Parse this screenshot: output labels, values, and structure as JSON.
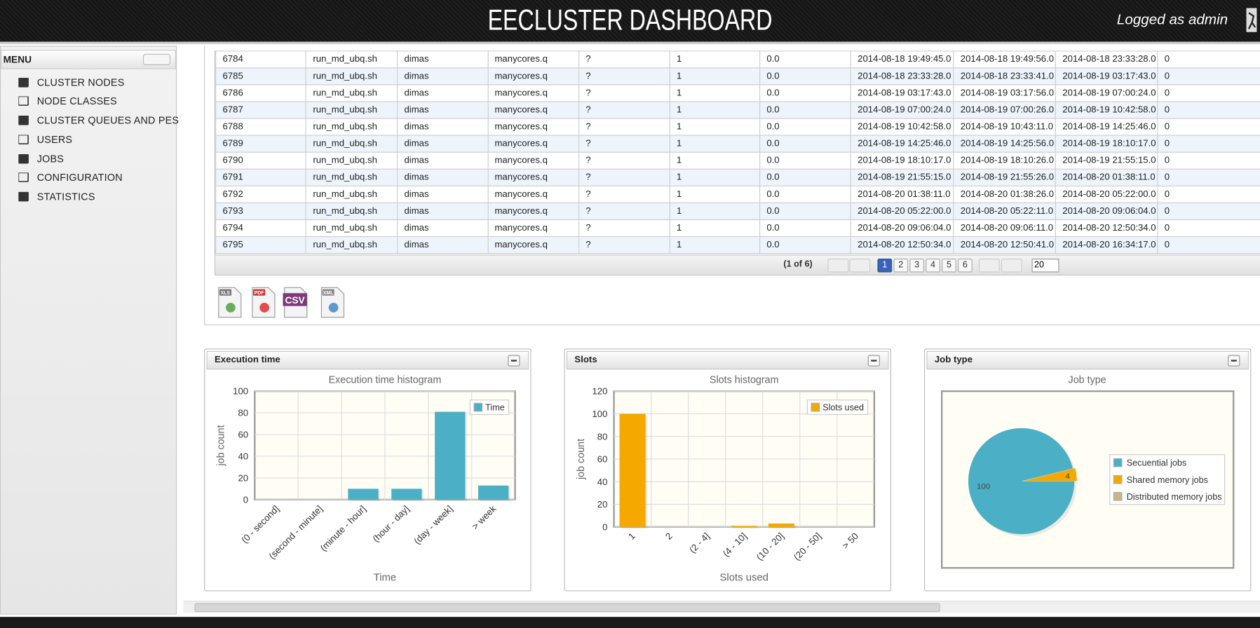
{
  "header": {
    "title": "EECLUSTER DASHBOARD",
    "user": "Logged as admin"
  },
  "menu": {
    "title": "MENU",
    "items": [
      "CLUSTER NODES",
      "NODE CLASSES",
      "CLUSTER QUEUES AND PES",
      "USERS",
      "JOBS",
      "CONFIGURATION",
      "STATISTICS"
    ]
  },
  "table": {
    "rows": [
      [
        "6784",
        "run_md_ubq.sh",
        "dimas",
        "manycores.q",
        "?",
        "1",
        "0.0",
        "2014-08-18 19:49:45.0",
        "2014-08-18 19:49:56.0",
        "2014-08-18 23:33:28.0",
        "0"
      ],
      [
        "6785",
        "run_md_ubq.sh",
        "dimas",
        "manycores.q",
        "?",
        "1",
        "0.0",
        "2014-08-18 23:33:28.0",
        "2014-08-18 23:33:41.0",
        "2014-08-19 03:17:43.0",
        "0"
      ],
      [
        "6786",
        "run_md_ubq.sh",
        "dimas",
        "manycores.q",
        "?",
        "1",
        "0.0",
        "2014-08-19 03:17:43.0",
        "2014-08-19 03:17:56.0",
        "2014-08-19 07:00:24.0",
        "0"
      ],
      [
        "6787",
        "run_md_ubq.sh",
        "dimas",
        "manycores.q",
        "?",
        "1",
        "0.0",
        "2014-08-19 07:00:24.0",
        "2014-08-19 07:00:26.0",
        "2014-08-19 10:42:58.0",
        "0"
      ],
      [
        "6788",
        "run_md_ubq.sh",
        "dimas",
        "manycores.q",
        "?",
        "1",
        "0.0",
        "2014-08-19 10:42:58.0",
        "2014-08-19 10:43:11.0",
        "2014-08-19 14:25:46.0",
        "0"
      ],
      [
        "6789",
        "run_md_ubq.sh",
        "dimas",
        "manycores.q",
        "?",
        "1",
        "0.0",
        "2014-08-19 14:25:46.0",
        "2014-08-19 14:25:56.0",
        "2014-08-19 18:10:17.0",
        "0"
      ],
      [
        "6790",
        "run_md_ubq.sh",
        "dimas",
        "manycores.q",
        "?",
        "1",
        "0.0",
        "2014-08-19 18:10:17.0",
        "2014-08-19 18:10:26.0",
        "2014-08-19 21:55:15.0",
        "0"
      ],
      [
        "6791",
        "run_md_ubq.sh",
        "dimas",
        "manycores.q",
        "?",
        "1",
        "0.0",
        "2014-08-19 21:55:15.0",
        "2014-08-19 21:55:26.0",
        "2014-08-20 01:38:11.0",
        "0"
      ],
      [
        "6792",
        "run_md_ubq.sh",
        "dimas",
        "manycores.q",
        "?",
        "1",
        "0.0",
        "2014-08-20 01:38:11.0",
        "2014-08-20 01:38:26.0",
        "2014-08-20 05:22:00.0",
        "0"
      ],
      [
        "6793",
        "run_md_ubq.sh",
        "dimas",
        "manycores.q",
        "?",
        "1",
        "0.0",
        "2014-08-20 05:22:00.0",
        "2014-08-20 05:22:11.0",
        "2014-08-20 09:06:04.0",
        "0"
      ],
      [
        "6794",
        "run_md_ubq.sh",
        "dimas",
        "manycores.q",
        "?",
        "1",
        "0.0",
        "2014-08-20 09:06:04.0",
        "2014-08-20 09:06:11.0",
        "2014-08-20 12:50:34.0",
        "0"
      ],
      [
        "6795",
        "run_md_ubq.sh",
        "dimas",
        "manycores.q",
        "?",
        "1",
        "0.0",
        "2014-08-20 12:50:34.0",
        "2014-08-20 12:50:41.0",
        "2014-08-20 16:34:17.0",
        "0"
      ]
    ]
  },
  "pagination": {
    "summary": "(1 of 6)",
    "pages": [
      1,
      2,
      3,
      4,
      5,
      6
    ],
    "rows_per_page": 20
  },
  "exports": [
    "XLS",
    "PDF",
    "CSV",
    "XML"
  ],
  "panels": [
    "Execution time",
    "Slots",
    "Job type"
  ],
  "chart_data": [
    {
      "type": "bar",
      "title": "Execution time histogram",
      "x_label": "Time",
      "y_label": "job count",
      "categories": [
        "(0 - second]",
        "(second - minute]",
        "(minute - hour]",
        "(hour - day]",
        "(day - week]",
        "> week"
      ],
      "series": [
        {
          "name": "Time",
          "color": "#4bafc6",
          "values": [
            0,
            0,
            10,
            10,
            81,
            13
          ]
        }
      ],
      "ylim": [
        0,
        100
      ],
      "yticks": [
        0,
        20,
        40,
        60,
        80,
        100
      ],
      "grid": true,
      "legend": "upper right"
    },
    {
      "type": "bar",
      "title": "Slots histogram",
      "x_label": "Slots used",
      "y_label": "job count",
      "categories": [
        "1",
        "2",
        "(2 - 4]",
        "(4 - 10]",
        "(10 - 20]",
        "(20 - 50]",
        "> 50"
      ],
      "series": [
        {
          "name": "Slots used",
          "color": "#f5a800",
          "values": [
            100,
            0,
            0,
            1,
            3,
            0,
            0
          ]
        }
      ],
      "ylim": [
        0,
        120
      ],
      "yticks": [
        0,
        20,
        40,
        60,
        80,
        100,
        120
      ],
      "grid": true,
      "legend": "upper right"
    },
    {
      "type": "pie",
      "title": "Job type",
      "categories": [
        "Secuential jobs",
        "Shared memory jobs",
        "Distributed memory jobs"
      ],
      "values": [
        100,
        4,
        0
      ],
      "colors": [
        "#4bafc6",
        "#f5a800",
        "#c9b782"
      ],
      "legend": "right"
    }
  ]
}
